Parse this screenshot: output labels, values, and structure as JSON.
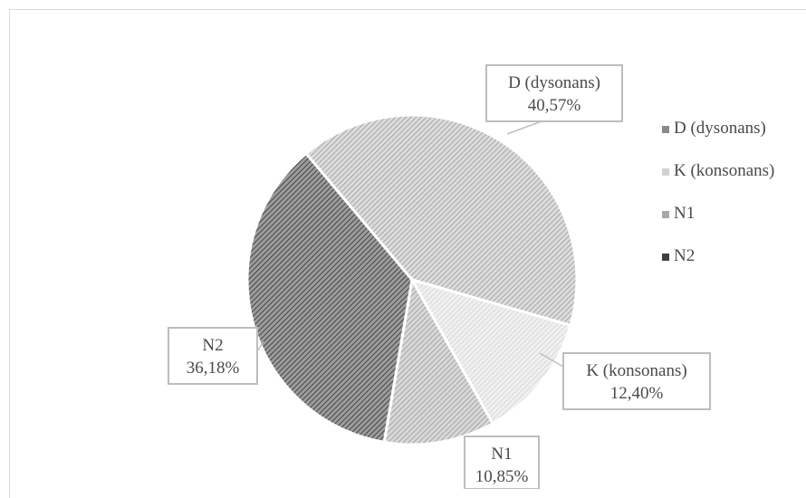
{
  "chart_data": {
    "type": "pie",
    "title": "",
    "series": [
      {
        "values": [
          40.57,
          12.4,
          10.85,
          36.18
        ],
        "display_values": [
          "40,57%",
          "12,40%",
          "10,85%",
          "36,18%"
        ]
      }
    ],
    "categories": [
      "D (dysonans)",
      "K (konsonans)",
      "N1",
      "N2"
    ],
    "legend": {
      "placement": "right",
      "entries": [
        "D (dysonans)",
        "K (konsonans)",
        "N1",
        "N2"
      ]
    },
    "colors": [
      "#c4c4c4",
      "#e0e0e0",
      "#bdbdbd",
      "#6e6e6e"
    ],
    "pattern": "diagonal-hatch"
  }
}
